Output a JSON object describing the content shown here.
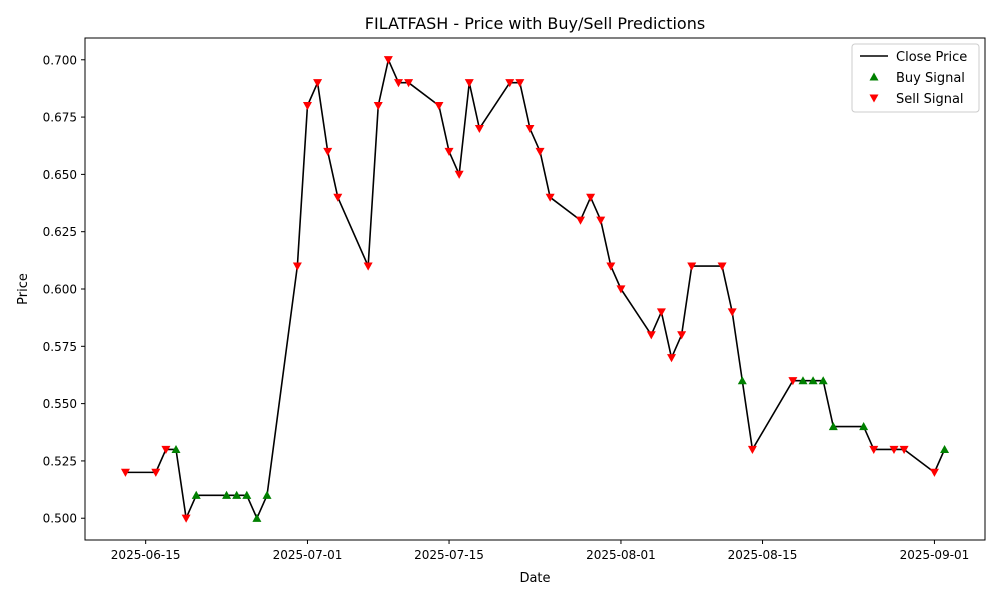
{
  "chart_data": {
    "type": "line",
    "title": "FILATFASH - Price with Buy/Sell Predictions",
    "xlabel": "Date",
    "ylabel": "Price",
    "xlim": [
      "2025-06-09",
      "2025-09-06"
    ],
    "ylim": [
      0.4905,
      0.7095
    ],
    "grid": false,
    "legend_position": "upper right",
    "x_ticks": [
      "2025-06-15",
      "2025-07-01",
      "2025-07-15",
      "2025-08-01",
      "2025-08-15",
      "2025-09-01"
    ],
    "y_ticks": [
      "0.500",
      "0.525",
      "0.550",
      "0.575",
      "0.600",
      "0.625",
      "0.650",
      "0.675",
      "0.700"
    ],
    "colors": {
      "line": "#000000",
      "buy": "#008000",
      "sell": "#ff0000"
    },
    "series": [
      {
        "name": "Close Price",
        "kind": "line",
        "points": [
          [
            "2025-06-13",
            0.52
          ],
          [
            "2025-06-16",
            0.52
          ],
          [
            "2025-06-17",
            0.53
          ],
          [
            "2025-06-18",
            0.53
          ],
          [
            "2025-06-19",
            0.5
          ],
          [
            "2025-06-20",
            0.51
          ],
          [
            "2025-06-23",
            0.51
          ],
          [
            "2025-06-24",
            0.51
          ],
          [
            "2025-06-25",
            0.51
          ],
          [
            "2025-06-26",
            0.5
          ],
          [
            "2025-06-27",
            0.51
          ],
          [
            "2025-06-30",
            0.61
          ],
          [
            "2025-07-01",
            0.68
          ],
          [
            "2025-07-02",
            0.69
          ],
          [
            "2025-07-03",
            0.66
          ],
          [
            "2025-07-04",
            0.64
          ],
          [
            "2025-07-07",
            0.61
          ],
          [
            "2025-07-08",
            0.68
          ],
          [
            "2025-07-09",
            0.7
          ],
          [
            "2025-07-10",
            0.69
          ],
          [
            "2025-07-11",
            0.69
          ],
          [
            "2025-07-14",
            0.68
          ],
          [
            "2025-07-15",
            0.66
          ],
          [
            "2025-07-16",
            0.65
          ],
          [
            "2025-07-17",
            0.69
          ],
          [
            "2025-07-18",
            0.67
          ],
          [
            "2025-07-21",
            0.69
          ],
          [
            "2025-07-22",
            0.69
          ],
          [
            "2025-07-23",
            0.67
          ],
          [
            "2025-07-24",
            0.66
          ],
          [
            "2025-07-25",
            0.64
          ],
          [
            "2025-07-28",
            0.63
          ],
          [
            "2025-07-29",
            0.64
          ],
          [
            "2025-07-30",
            0.63
          ],
          [
            "2025-07-31",
            0.61
          ],
          [
            "2025-08-01",
            0.6
          ],
          [
            "2025-08-04",
            0.58
          ],
          [
            "2025-08-05",
            0.59
          ],
          [
            "2025-08-06",
            0.57
          ],
          [
            "2025-08-07",
            0.58
          ],
          [
            "2025-08-08",
            0.61
          ],
          [
            "2025-08-11",
            0.61
          ],
          [
            "2025-08-12",
            0.59
          ],
          [
            "2025-08-13",
            0.56
          ],
          [
            "2025-08-14",
            0.53
          ],
          [
            "2025-08-18",
            0.56
          ],
          [
            "2025-08-19",
            0.56
          ],
          [
            "2025-08-20",
            0.56
          ],
          [
            "2025-08-21",
            0.56
          ],
          [
            "2025-08-22",
            0.54
          ],
          [
            "2025-08-25",
            0.54
          ],
          [
            "2025-08-26",
            0.53
          ],
          [
            "2025-08-28",
            0.53
          ],
          [
            "2025-08-29",
            0.53
          ],
          [
            "2025-09-01",
            0.52
          ],
          [
            "2025-09-02",
            0.53
          ]
        ]
      },
      {
        "name": "Buy Signal",
        "kind": "marker",
        "marker": "triangle-up",
        "points": [
          [
            "2025-06-18",
            0.53
          ],
          [
            "2025-06-20",
            0.51
          ],
          [
            "2025-06-23",
            0.51
          ],
          [
            "2025-06-24",
            0.51
          ],
          [
            "2025-06-25",
            0.51
          ],
          [
            "2025-06-26",
            0.5
          ],
          [
            "2025-06-27",
            0.51
          ],
          [
            "2025-08-13",
            0.56
          ],
          [
            "2025-08-19",
            0.56
          ],
          [
            "2025-08-20",
            0.56
          ],
          [
            "2025-08-21",
            0.56
          ],
          [
            "2025-08-22",
            0.54
          ],
          [
            "2025-08-25",
            0.54
          ],
          [
            "2025-09-02",
            0.53
          ]
        ]
      },
      {
        "name": "Sell Signal",
        "kind": "marker",
        "marker": "triangle-down",
        "points": [
          [
            "2025-06-13",
            0.52
          ],
          [
            "2025-06-16",
            0.52
          ],
          [
            "2025-06-17",
            0.53
          ],
          [
            "2025-06-19",
            0.5
          ],
          [
            "2025-06-30",
            0.61
          ],
          [
            "2025-07-01",
            0.68
          ],
          [
            "2025-07-02",
            0.69
          ],
          [
            "2025-07-03",
            0.66
          ],
          [
            "2025-07-04",
            0.64
          ],
          [
            "2025-07-07",
            0.61
          ],
          [
            "2025-07-08",
            0.68
          ],
          [
            "2025-07-09",
            0.7
          ],
          [
            "2025-07-10",
            0.69
          ],
          [
            "2025-07-11",
            0.69
          ],
          [
            "2025-07-14",
            0.68
          ],
          [
            "2025-07-15",
            0.66
          ],
          [
            "2025-07-16",
            0.65
          ],
          [
            "2025-07-17",
            0.69
          ],
          [
            "2025-07-18",
            0.67
          ],
          [
            "2025-07-21",
            0.69
          ],
          [
            "2025-07-22",
            0.69
          ],
          [
            "2025-07-23",
            0.67
          ],
          [
            "2025-07-24",
            0.66
          ],
          [
            "2025-07-25",
            0.64
          ],
          [
            "2025-07-28",
            0.63
          ],
          [
            "2025-07-29",
            0.64
          ],
          [
            "2025-07-30",
            0.63
          ],
          [
            "2025-07-31",
            0.61
          ],
          [
            "2025-08-01",
            0.6
          ],
          [
            "2025-08-04",
            0.58
          ],
          [
            "2025-08-05",
            0.59
          ],
          [
            "2025-08-06",
            0.57
          ],
          [
            "2025-08-07",
            0.58
          ],
          [
            "2025-08-08",
            0.61
          ],
          [
            "2025-08-11",
            0.61
          ],
          [
            "2025-08-12",
            0.59
          ],
          [
            "2025-08-14",
            0.53
          ],
          [
            "2025-08-18",
            0.56
          ],
          [
            "2025-08-26",
            0.53
          ],
          [
            "2025-08-28",
            0.53
          ],
          [
            "2025-08-29",
            0.53
          ],
          [
            "2025-09-01",
            0.52
          ]
        ]
      }
    ]
  }
}
